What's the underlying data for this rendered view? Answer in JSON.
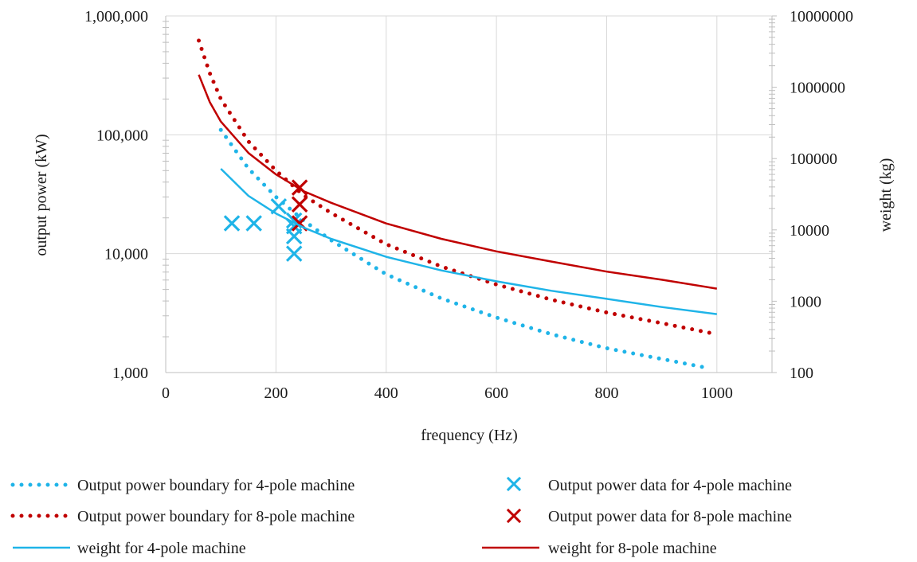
{
  "chart_data": {
    "type": "line",
    "xlabel": "frequency (Hz)",
    "ylabel": "output power (kW)",
    "y2label": "weight (kg)",
    "xlim": [
      0,
      1100
    ],
    "ylim": [
      1000,
      1000000
    ],
    "y2lim": [
      100,
      10000000
    ],
    "yscale": "log",
    "y2scale": "log",
    "grid": true,
    "legend_position": "bottom",
    "x_ticks": [
      "0",
      "200",
      "400",
      "600",
      "800",
      "1000"
    ],
    "y_ticks": [
      "1,000",
      "10,000",
      "100,000",
      "1,000,000"
    ],
    "y2_ticks": [
      "100",
      "1000",
      "10000",
      "100000",
      "1000000",
      "10000000"
    ],
    "colors": {
      "four_pole": "#1fb4e8",
      "eight_pole": "#c00000"
    },
    "series": [
      {
        "name": "Output power boundary for 4-pole machine",
        "kind": "dotted",
        "axis": "left",
        "color": "#1fb4e8",
        "x": [
          100,
          150,
          200,
          250,
          300,
          400,
          500,
          600,
          700,
          800,
          900,
          980
        ],
        "y": [
          110000,
          52000,
          30000,
          19000,
          13000,
          6700,
          4200,
          2900,
          2100,
          1600,
          1300,
          1100
        ]
      },
      {
        "name": "Output power boundary for 8-pole machine",
        "kind": "dotted",
        "axis": "left",
        "color": "#c00000",
        "x": [
          60,
          80,
          100,
          150,
          200,
          250,
          300,
          400,
          500,
          600,
          700,
          800,
          900,
          1000
        ],
        "y": [
          620000,
          330000,
          200000,
          88000,
          50000,
          31000,
          22000,
          12000,
          7800,
          5500,
          4100,
          3200,
          2600,
          2100
        ]
      },
      {
        "name": "Output power data for 4-pole machine",
        "kind": "marker",
        "axis": "left",
        "color": "#1fb4e8",
        "x": [
          120,
          160,
          205,
          233,
          233,
          233,
          233
        ],
        "y": [
          18000,
          18000,
          25000,
          19000,
          17000,
          14000,
          10000
        ]
      },
      {
        "name": "Output power data for 8-pole machine",
        "kind": "marker",
        "axis": "left",
        "color": "#c00000",
        "x": [
          243,
          243,
          243
        ],
        "y": [
          36000,
          26000,
          18000
        ]
      },
      {
        "name": "weight for 4-pole machine",
        "kind": "solid",
        "axis": "right",
        "color": "#1fb4e8",
        "x": [
          100,
          150,
          200,
          250,
          300,
          400,
          500,
          600,
          700,
          800,
          900,
          1000
        ],
        "y": [
          72000,
          30000,
          17000,
          10800,
          7500,
          4200,
          2700,
          1900,
          1400,
          1080,
          830,
          660
        ]
      },
      {
        "name": "weight for 8-pole machine",
        "kind": "solid",
        "axis": "right",
        "color": "#c00000",
        "x": [
          60,
          80,
          100,
          150,
          200,
          250,
          300,
          400,
          500,
          600,
          700,
          800,
          900,
          1000
        ],
        "y": [
          1500000,
          620000,
          330000,
          120000,
          60000,
          35000,
          24000,
          12300,
          7500,
          5000,
          3600,
          2600,
          2000,
          1500
        ]
      }
    ]
  }
}
